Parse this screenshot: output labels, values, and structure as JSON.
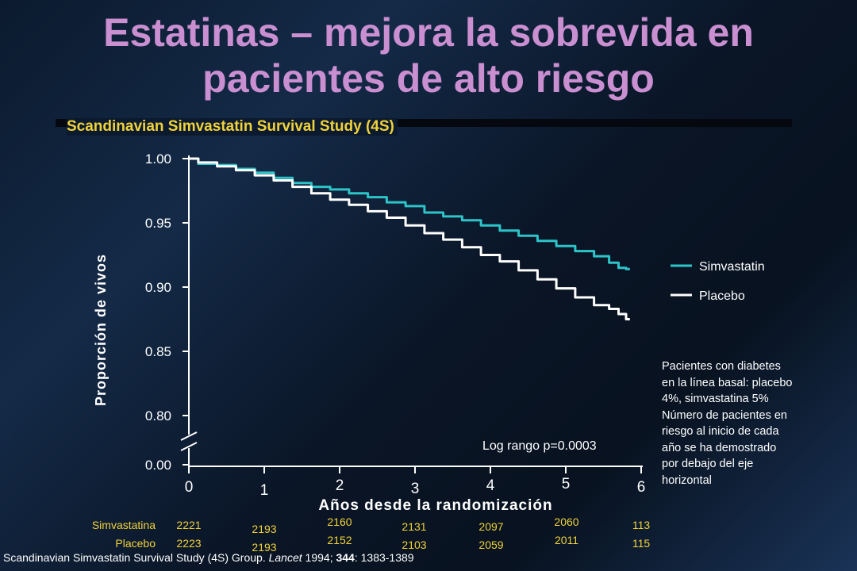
{
  "page": {
    "title_line1": "Estatinas – mejora la sobrevida en",
    "title_line2": "pacientes de alto riesgo",
    "subtitle": "Scandinavian Simvastatin Survival Study (4S)",
    "note_lines": [
      "Pacientes con diabetes",
      "en la línea basal: placebo",
      "4%, simvastatina 5%",
      "Número de pacientes en",
      "riesgo al inicio de cada",
      "año se ha demostrado",
      "por debajo del eje",
      "horizontal"
    ],
    "citation_prefix": "Scandinavian Simvastatin Survival Study (4S) Group. ",
    "citation_journal": "Lancet",
    "citation_year": " 1994; ",
    "citation_volume": "344",
    "citation_pages": ": 1383-1389"
  },
  "colors": {
    "title": "#c98fd1",
    "subtitle": "#f0d23a",
    "simvastatin": "#2cc4c8",
    "placebo": "#ffffff"
  },
  "chart_data": {
    "type": "line",
    "title": "Scandinavian Simvastatin Survival Study (4S)",
    "xlabel": "Años desde la randomización",
    "ylabel": "Proporción de vivos",
    "x_ticks": [
      "0",
      "1",
      "2",
      "3",
      "4",
      "5",
      "6"
    ],
    "y_ticks": [
      "1.00",
      "0.95",
      "0.90",
      "0.85",
      "0.80"
    ],
    "y_zero_tick": "0.00",
    "ylim": [
      0.8,
      1.0
    ],
    "xlim": [
      0,
      6
    ],
    "annotation": "Log rango  p=0.0003",
    "legend": [
      {
        "name": "Simvastatin",
        "color": "#2cc4c8"
      },
      {
        "name": "Placebo",
        "color": "#ffffff"
      }
    ],
    "series": [
      {
        "name": "Simvastatin",
        "color": "#2cc4c8",
        "x": [
          0,
          0.25,
          0.5,
          0.75,
          1.0,
          1.25,
          1.5,
          1.75,
          2.0,
          2.25,
          2.5,
          2.75,
          3.0,
          3.25,
          3.5,
          3.75,
          4.0,
          4.25,
          4.5,
          4.75,
          5.0,
          5.25,
          5.5,
          5.65,
          5.75,
          5.85
        ],
        "values": [
          1.0,
          0.996,
          0.995,
          0.992,
          0.989,
          0.985,
          0.981,
          0.978,
          0.976,
          0.973,
          0.97,
          0.966,
          0.963,
          0.958,
          0.955,
          0.952,
          0.948,
          0.944,
          0.94,
          0.936,
          0.932,
          0.928,
          0.924,
          0.919,
          0.915,
          0.914
        ]
      },
      {
        "name": "Placebo",
        "color": "#ffffff",
        "x": [
          0,
          0.25,
          0.5,
          0.75,
          1.0,
          1.25,
          1.5,
          1.75,
          2.0,
          2.25,
          2.5,
          2.75,
          3.0,
          3.25,
          3.5,
          3.75,
          4.0,
          4.25,
          4.5,
          4.75,
          5.0,
          5.25,
          5.5,
          5.65,
          5.75,
          5.85
        ],
        "values": [
          1.0,
          0.997,
          0.994,
          0.991,
          0.987,
          0.983,
          0.978,
          0.973,
          0.968,
          0.964,
          0.959,
          0.954,
          0.948,
          0.942,
          0.937,
          0.931,
          0.925,
          0.92,
          0.913,
          0.906,
          0.899,
          0.892,
          0.886,
          0.883,
          0.879,
          0.875
        ]
      }
    ],
    "at_risk": {
      "Simvastatina": [
        "2221",
        "2193",
        "2160",
        "2131",
        "2097",
        "2060",
        "113"
      ],
      "Placebo": [
        "2223",
        "2193",
        "2152",
        "2103",
        "2059",
        "2011",
        "115"
      ]
    }
  }
}
